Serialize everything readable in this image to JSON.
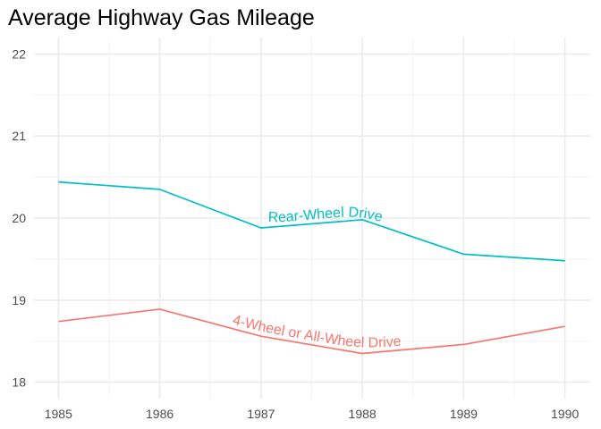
{
  "chart_data": {
    "type": "line",
    "title": "Average Highway Gas Mileage",
    "xlabel": "",
    "ylabel": "",
    "x": [
      1985,
      1986,
      1987,
      1988,
      1989,
      1990
    ],
    "xlim": [
      1985,
      1990
    ],
    "ylim": [
      18,
      22
    ],
    "x_ticks": [
      "1985",
      "1986",
      "1987",
      "1988",
      "1989",
      "1990"
    ],
    "y_ticks": [
      "18",
      "19",
      "20",
      "21",
      "22"
    ],
    "grid": true,
    "legend": "none (direct labels)",
    "series": [
      {
        "name": "Rear-Wheel Drive",
        "color": "#00BFC4",
        "values": [
          20.44,
          20.35,
          19.88,
          19.98,
          19.56,
          19.48
        ]
      },
      {
        "name": "4-Wheel or All-Wheel Drive",
        "color": "#F8766D",
        "values": [
          18.74,
          18.89,
          18.56,
          18.35,
          18.46,
          18.68
        ]
      }
    ]
  }
}
